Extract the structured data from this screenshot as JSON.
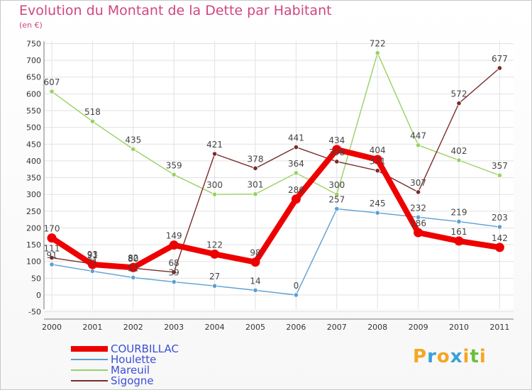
{
  "chart_data": {
    "type": "line",
    "title": "Evolution du Montant de la Dette par Habitant",
    "subtitle": "(en €)",
    "categories": [
      "2000",
      "2001",
      "2002",
      "2003",
      "2004",
      "2005",
      "2006",
      "2007",
      "2008",
      "2009",
      "2010",
      "2011"
    ],
    "y_ticks": [
      -50,
      0,
      50,
      100,
      150,
      200,
      250,
      300,
      350,
      400,
      450,
      500,
      550,
      600,
      650,
      700,
      750
    ],
    "ylim": [
      -50,
      750
    ],
    "grid": true,
    "legend_position": "bottom-left",
    "series": [
      {
        "name": "COURBILLAC",
        "color": "#ee0000",
        "values": [
          170,
          91,
          82,
          149,
          122,
          98,
          286,
          434,
          404,
          186,
          161,
          142
        ]
      },
      {
        "name": "Houlette",
        "color": "#5b9fd2",
        "values": [
          91,
          71,
          52,
          39,
          27,
          14,
          0,
          257,
          245,
          232,
          219,
          203
        ]
      },
      {
        "name": "Mareuil",
        "color": "#99d164",
        "values": [
          607,
          518,
          435,
          359,
          300,
          301,
          364,
          300,
          722,
          447,
          402,
          357
        ]
      },
      {
        "name": "Sigogne",
        "color": "#7a2a2a",
        "values": [
          111,
          93,
          80,
          68,
          421,
          378,
          441,
          398,
          371,
          307,
          572,
          677
        ]
      }
    ]
  },
  "logo": {
    "letters": [
      "P",
      "r",
      "o",
      "x",
      "i",
      "t",
      "i"
    ],
    "colors": [
      "#f5a623",
      "#3aa0d8",
      "#f5a623",
      "#3aa0d8",
      "#f5a623",
      "#6cbf3d",
      "#f5a623"
    ]
  }
}
